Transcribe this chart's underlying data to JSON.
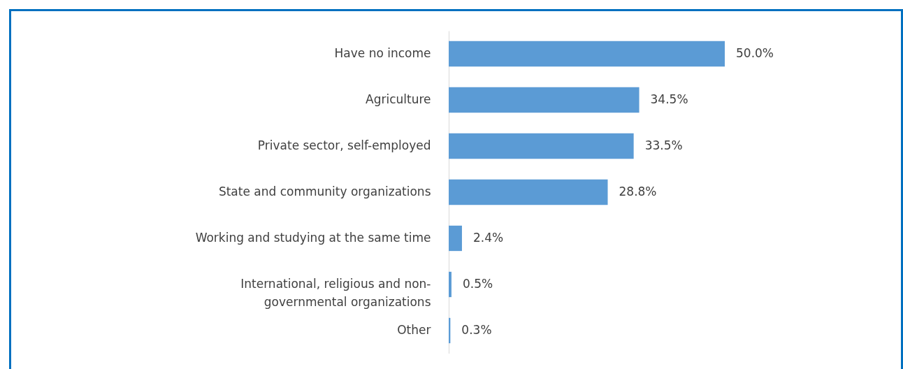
{
  "chart_data": {
    "type": "bar",
    "orientation": "horizontal",
    "categories": [
      "Have no income",
      "Agriculture",
      "Private sector, self-employed",
      "State and community organizations",
      "Working and studying at the same time",
      "International, religious and non-governmental organizations",
      "Other"
    ],
    "values": [
      50.0,
      34.5,
      33.5,
      28.8,
      2.4,
      0.5,
      0.3
    ],
    "value_labels": [
      "50.0%",
      "34.5%",
      "33.5%",
      "28.8%",
      "2.4%",
      "0.5%",
      "0.3%"
    ],
    "color": "#5b9bd5"
  }
}
